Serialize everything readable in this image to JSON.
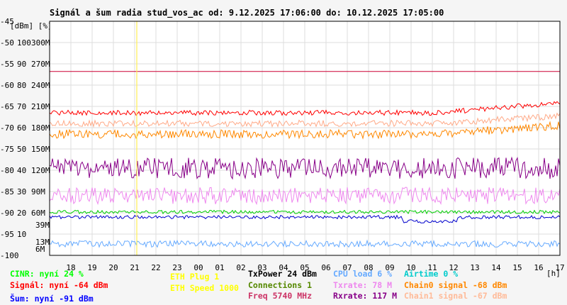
{
  "chart_data": {
    "type": "line",
    "title": "Signál a šum radia stud_vos_ac od: 9.12.2025 17:06:00 do: 10.12.2025 17:05:00",
    "y_unit_label": "[dBm] [%]",
    "x_unit_label": "[h]",
    "x_tick_labels": [
      "18",
      "19",
      "20",
      "21",
      "22",
      "23",
      "00",
      "01",
      "02",
      "03",
      "04",
      "05",
      "06",
      "07",
      "08",
      "09",
      "10",
      "11",
      "12",
      "13",
      "14",
      "15",
      "16",
      "17"
    ],
    "y_axis": {
      "dbm_ticks": [
        "-45",
        "-50",
        "-55",
        "-60",
        "-65",
        "-70",
        "-75",
        "-80",
        "-85",
        "-90",
        "-95",
        "-100"
      ],
      "percent_ticks": [
        "100",
        "90",
        "80",
        "70",
        "60",
        "50",
        "40",
        "30",
        "20",
        "10"
      ],
      "rate_ticks": [
        "300M",
        "270M",
        "240M",
        "210M",
        "180M",
        "150M",
        "120M",
        "90M",
        "60M"
      ],
      "extra_ticks": [
        {
          "label": "39M",
          "color": "#dd44dd"
        },
        {
          "label": "13M",
          "color": "#dd44dd"
        },
        {
          "label": "6M",
          "color": "#cc0066"
        }
      ]
    },
    "ylim_dbm": [
      -100,
      -45
    ],
    "grid": true,
    "series": [
      {
        "name": "Signál",
        "color": "#ff0000"
      },
      {
        "name": "Chain0 signal",
        "color": "#ff8800"
      },
      {
        "name": "Chain1 signal",
        "color": "#ffaa88"
      },
      {
        "name": "Txrate",
        "color": "#880088"
      },
      {
        "name": "Rxrate",
        "color": "#ee88ee"
      },
      {
        "name": "CINR",
        "color": "#00cc00"
      },
      {
        "name": "Šum",
        "color": "#0000cc"
      },
      {
        "name": "CPU load",
        "color": "#66aaff"
      },
      {
        "name": "Freq",
        "color": "#cc0033"
      }
    ]
  },
  "legend": {
    "cinr": {
      "text": "CINR: nyní 24 %",
      "color": "#00ff00"
    },
    "signal": {
      "text": "Signál: nyní -64 dBm",
      "color": "#ff0000"
    },
    "noise": {
      "text": "Šum: nyní -91 dBm",
      "color": "#0000ff"
    },
    "eth_plug": {
      "text": "ETH Plug 1",
      "color": "#ffff00"
    },
    "eth_speed": {
      "text": "ETH Speed 1000",
      "color": "#ffff00"
    },
    "txpower": {
      "text": "TxPower 24 dBm",
      "color": "#000000"
    },
    "connections": {
      "text": "Connections 1",
      "color": "#558800"
    },
    "freq": {
      "text": "Freq 5740 MHz",
      "color": "#cc3366"
    },
    "cpu": {
      "text": "CPU load 6 %",
      "color": "#66aaff"
    },
    "txrate": {
      "text": "Txrate: 78 M",
      "color": "#ee88ee"
    },
    "rxrate": {
      "text": "Rxrate: 117 M",
      "color": "#880088"
    },
    "airtime": {
      "text": "Airtime 0 %",
      "color": "#00cccc"
    },
    "chain0": {
      "text": "Chain0 signal -68 dBm",
      "color": "#ff8800"
    },
    "chain1": {
      "text": "Chain1 signal -67 dBm",
      "color": "#ffbb99"
    }
  }
}
